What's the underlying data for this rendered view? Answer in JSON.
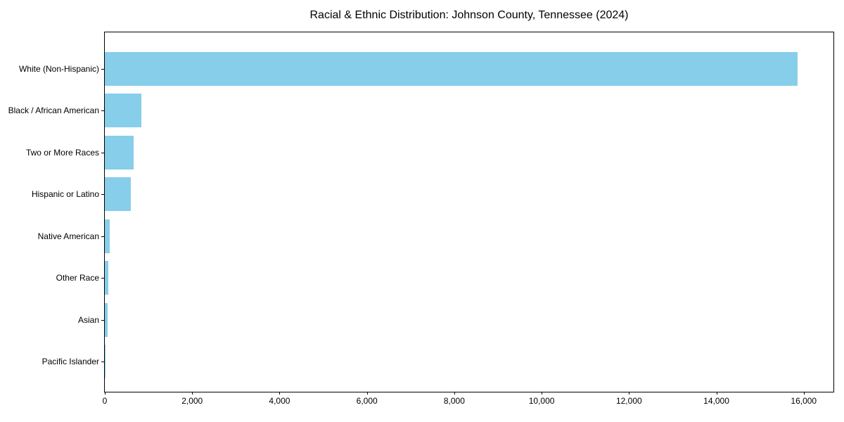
{
  "title": "Racial & Ethnic Distribution: Johnson County, Tennessee (2024)",
  "colors": {
    "bar": "#87CEEB",
    "axis": "#000000",
    "background": "#FFFFFF",
    "text": "#000000"
  },
  "chart_data": {
    "type": "bar",
    "orientation": "horizontal",
    "title": "Racial & Ethnic Distribution: Johnson County, Tennessee (2024)",
    "xlabel": "",
    "ylabel": "",
    "categories": [
      "White (Non-Hispanic)",
      "Black / African American",
      "Two or More Races",
      "Hispanic or Latino",
      "Native American",
      "Other Race",
      "Asian",
      "Pacific Islander"
    ],
    "values": [
      15860,
      840,
      655,
      595,
      115,
      80,
      65,
      8
    ],
    "xlim": [
      0,
      16680
    ],
    "x_ticks": [
      0,
      2000,
      4000,
      6000,
      8000,
      10000,
      12000,
      14000,
      16000
    ],
    "x_tick_labels": [
      "0",
      "2,000",
      "4,000",
      "6,000",
      "8,000",
      "10,000",
      "12,000",
      "14,000",
      "16,000"
    ],
    "bar_color": "#87CEEB",
    "grid": false,
    "legend": false
  }
}
